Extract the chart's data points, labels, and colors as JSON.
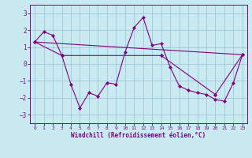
{
  "xlabel": "Windchill (Refroidissement éolien,°C)",
  "background_color": "#c8eaf0",
  "grid_color": "#a0c8d8",
  "line_color": "#800080",
  "xlim": [
    -0.5,
    23.5
  ],
  "ylim": [
    -3.5,
    3.5
  ],
  "yticks": [
    -3,
    -2,
    -1,
    0,
    1,
    2,
    3
  ],
  "xticks": [
    0,
    1,
    2,
    3,
    4,
    5,
    6,
    7,
    8,
    9,
    10,
    11,
    12,
    13,
    14,
    15,
    16,
    17,
    18,
    19,
    20,
    21,
    22,
    23
  ],
  "series1_x": [
    0,
    1,
    2,
    3,
    4,
    5,
    6,
    7,
    8,
    9,
    10,
    11,
    12,
    13,
    14,
    15,
    16,
    17,
    18,
    19,
    20,
    21,
    22,
    23
  ],
  "series1_y": [
    1.3,
    1.9,
    1.7,
    0.5,
    -1.2,
    -2.6,
    -1.7,
    -1.9,
    -1.1,
    -1.2,
    0.7,
    2.15,
    2.75,
    1.1,
    1.2,
    -0.2,
    -1.3,
    -1.55,
    -1.7,
    -1.8,
    -2.1,
    -2.2,
    -1.1,
    0.55
  ],
  "series2_x": [
    0,
    3,
    3,
    14,
    14,
    20,
    20,
    23
  ],
  "series2_y": [
    1.3,
    0.5,
    0.5,
    0.5,
    0.5,
    -1.8,
    -1.8,
    0.55
  ],
  "series3_x": [
    0,
    23
  ],
  "series3_y": [
    1.3,
    0.55
  ]
}
